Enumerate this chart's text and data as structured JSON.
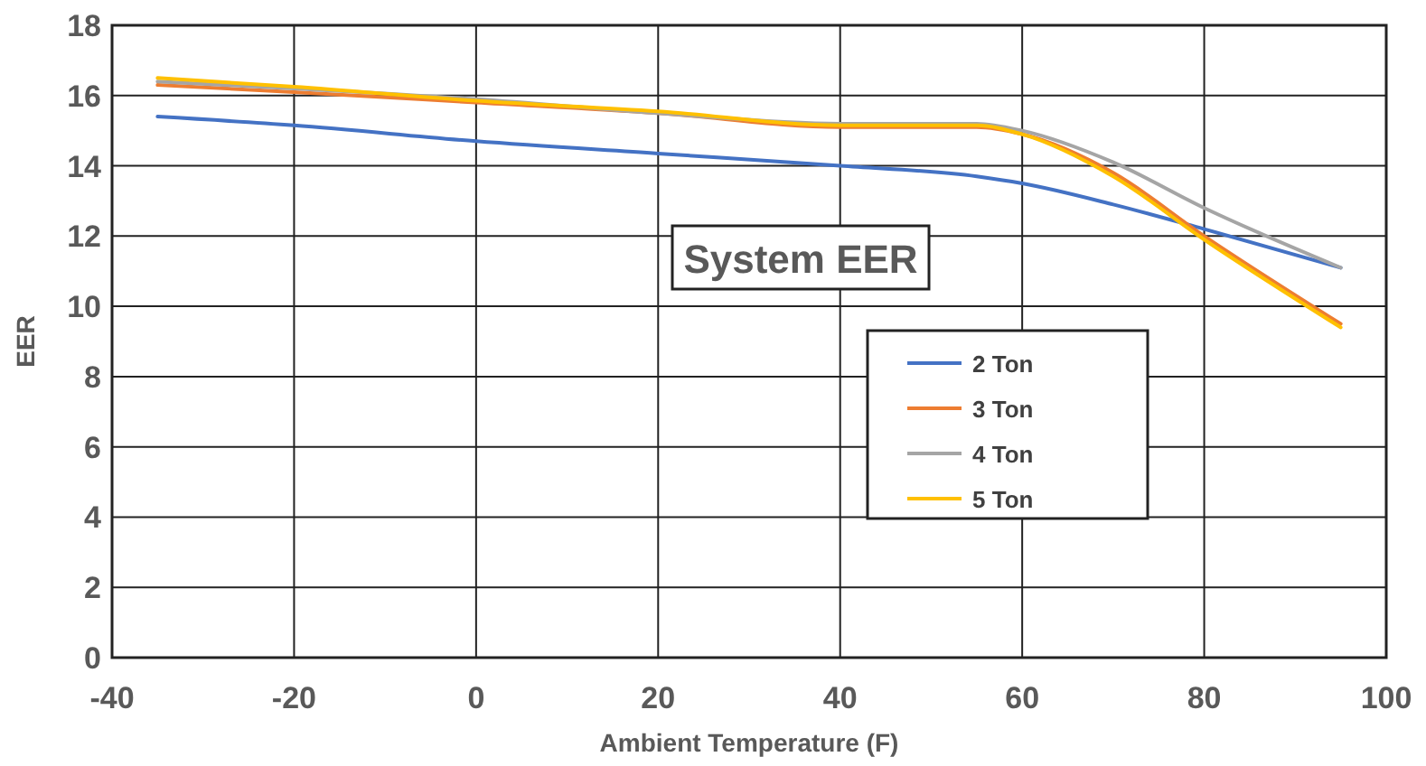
{
  "chart_data": {
    "type": "line",
    "xlabel": "Ambient Temperature (F)",
    "ylabel": "EER",
    "annotations": [
      "System EER"
    ],
    "x": [
      -35,
      -20,
      0,
      20,
      40,
      55,
      60,
      70,
      80,
      95
    ],
    "xlim": [
      -40,
      100
    ],
    "xticks": [
      -40,
      -20,
      0,
      20,
      40,
      60,
      80,
      100
    ],
    "ylim": [
      0,
      18
    ],
    "yticks": [
      0,
      2,
      4,
      6,
      8,
      10,
      12,
      14,
      16,
      18
    ],
    "grid": true,
    "legend": "right",
    "line_style": "solid",
    "marker": "none",
    "series": [
      {
        "name": "2 Ton",
        "color": "#4472c4",
        "values": [
          15.4,
          15.15,
          14.7,
          14.35,
          14.0,
          13.7,
          13.5,
          12.9,
          12.2,
          11.1
        ]
      },
      {
        "name": "3 Ton",
        "color": "#ed7d31",
        "values": [
          16.3,
          16.1,
          15.8,
          15.5,
          15.1,
          15.1,
          14.9,
          13.8,
          12.0,
          9.5
        ]
      },
      {
        "name": "4 Ton",
        "color": "#a5a5a5",
        "values": [
          16.4,
          16.2,
          15.9,
          15.5,
          15.2,
          15.2,
          15.0,
          14.1,
          12.8,
          11.1
        ]
      },
      {
        "name": "5 Ton",
        "color": "#ffc000",
        "values": [
          16.5,
          16.25,
          15.85,
          15.55,
          15.15,
          15.15,
          14.9,
          13.7,
          11.9,
          9.4
        ]
      }
    ]
  }
}
